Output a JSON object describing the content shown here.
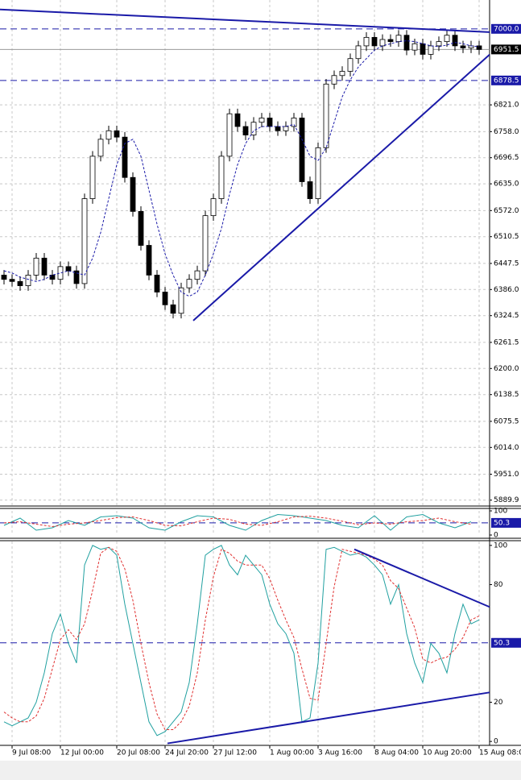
{
  "chart_data": [
    {
      "type": "candlestick",
      "open": [
        6420,
        6410,
        6405,
        6395,
        6420,
        6460,
        6420,
        6410,
        6440,
        6430,
        6400,
        6600,
        6700,
        6740,
        6760,
        6745,
        6650,
        6570,
        6490,
        6420,
        6380,
        6350,
        6330,
        6390,
        6410,
        6430,
        6560,
        6600,
        6700,
        6800,
        6770,
        6750,
        6780,
        6790,
        6770,
        6760,
        6770,
        6790,
        6640,
        6600,
        6720,
        6870,
        6890,
        6900,
        6930,
        6960,
        6980,
        6960,
        6975,
        6970,
        6985,
        6950,
        6965,
        6940,
        6960,
        6970,
        6985,
        6960,
        6955,
        6960
      ],
      "high": [
        6432,
        6422,
        6417,
        6432,
        6472,
        6472,
        6432,
        6452,
        6452,
        6442,
        6612,
        6712,
        6752,
        6772,
        6772,
        6757,
        6662,
        6582,
        6502,
        6432,
        6392,
        6362,
        6402,
        6422,
        6442,
        6572,
        6612,
        6712,
        6812,
        6812,
        6782,
        6792,
        6802,
        6802,
        6782,
        6782,
        6802,
        6802,
        6652,
        6732,
        6882,
        6902,
        6912,
        6942,
        6972,
        6992,
        6992,
        6987,
        6987,
        6997,
        6997,
        6977,
        6977,
        6972,
        6982,
        6997,
        6997,
        6972,
        6972,
        6972
      ],
      "low": [
        6398,
        6393,
        6383,
        6383,
        6408,
        6408,
        6398,
        6398,
        6418,
        6388,
        6388,
        6588,
        6688,
        6728,
        6733,
        6638,
        6558,
        6478,
        6408,
        6368,
        6338,
        6318,
        6318,
        6378,
        6398,
        6418,
        6548,
        6588,
        6688,
        6758,
        6738,
        6738,
        6768,
        6758,
        6748,
        6748,
        6758,
        6628,
        6588,
        6588,
        6708,
        6858,
        6878,
        6888,
        6918,
        6948,
        6948,
        6948,
        6958,
        6958,
        6938,
        6938,
        6928,
        6928,
        6948,
        6958,
        6948,
        6943,
        6943,
        6939.5
      ],
      "close": [
        6410,
        6405,
        6395,
        6420,
        6460,
        6420,
        6410,
        6440,
        6430,
        6400,
        6600,
        6700,
        6740,
        6760,
        6745,
        6650,
        6570,
        6490,
        6420,
        6380,
        6350,
        6330,
        6390,
        6410,
        6430,
        6560,
        6600,
        6700,
        6800,
        6770,
        6750,
        6780,
        6790,
        6770,
        6760,
        6770,
        6790,
        6640,
        6600,
        6720,
        6870,
        6890,
        6900,
        6930,
        6960,
        6980,
        6960,
        6975,
        6970,
        6985,
        6950,
        6965,
        6940,
        6960,
        6970,
        6985,
        6960,
        6955,
        6960,
        6951.5
      ],
      "color_up": "#ffffff",
      "color_down": "#000000",
      "ma": {
        "color": "#1a1aa8",
        "values": [
          6430,
          6425,
          6415,
          6410,
          6405,
          6410,
          6420,
          6425,
          6430,
          6425,
          6420,
          6460,
          6520,
          6600,
          6680,
          6730,
          6740,
          6700,
          6620,
          6540,
          6470,
          6420,
          6380,
          6370,
          6380,
          6420,
          6470,
          6530,
          6610,
          6680,
          6730,
          6760,
          6770,
          6770,
          6770,
          6770,
          6775,
          6740,
          6700,
          6690,
          6720,
          6780,
          6840,
          6880,
          6910,
          6930,
          6950,
          6960,
          6965,
          6970,
          6972,
          6970,
          6965,
          6960,
          6958,
          6962,
          6968,
          6965,
          6960,
          6958
        ]
      },
      "xlim": [
        -0.5,
        60.3
      ],
      "ylim": [
        5876,
        7068
      ],
      "yticks": [
        {
          "value": 6821,
          "label": "6821.0"
        },
        {
          "value": 6758,
          "label": "6758.0"
        },
        6696.5,
        {
          "value": 6635,
          "label": "6635.0"
        },
        {
          "value": 6572,
          "label": "6572.0"
        },
        6510.5,
        6447.5,
        {
          "value": 6386,
          "label": "6386.0"
        },
        6324.5,
        6261.5,
        {
          "value": 6200,
          "label": "6200.0"
        },
        6138.5,
        6075.5,
        {
          "value": 6014,
          "label": "6014.0"
        },
        {
          "value": 5951,
          "label": "5951.0"
        },
        5889.9
      ],
      "xticks": [
        {
          "value": 1,
          "label": "9 Jul 08:00"
        },
        {
          "value": 7,
          "label": "12 Jul 00:00"
        },
        {
          "value": 14,
          "label": "20 Jul 08:00"
        },
        {
          "value": 20,
          "label": "24 Jul 20:00"
        },
        {
          "value": 26,
          "label": "27 Jul 12:00"
        },
        {
          "value": 33,
          "label": "1 Aug 00:00"
        },
        {
          "value": 39,
          "label": "3 Aug 16:00"
        },
        {
          "value": 46,
          "label": "8 Aug 04:00"
        },
        {
          "value": 52,
          "label": "10 Aug 20:00"
        },
        {
          "value": 59,
          "label": "15 Aug 08:00"
        }
      ],
      "levels": [
        {
          "value": {
            "value": 7000,
            "label": "7000.0"
          },
          "color": "#1a1aa8"
        },
        {
          "value": 6951.5,
          "color": "#000000"
        },
        {
          "value": 6878.5,
          "color": "#1a1aa8"
        }
      ],
      "trendlines": [
        {
          "x": [
            -0.5,
            60.3
          ],
          "y": [
            7045.6,
            6992.4
          ],
          "color": "#1a1aa8"
        },
        {
          "x": [
            23.5,
            60.3
          ],
          "y": [
            6312.9,
            6939.3
          ],
          "color": "#1a1aa8"
        }
      ],
      "grid": true
    },
    {
      "type": "line",
      "series": [
        {
          "color": "#20a0a0",
          "dash": false,
          "values": [
            40,
            70,
            20,
            30,
            60,
            40,
            75,
            80,
            70,
            30,
            20,
            55,
            80,
            75,
            40,
            20,
            60,
            85,
            80,
            70,
            60,
            40,
            30,
            80,
            20,
            75,
            85,
            50,
            30,
            55
          ]
        },
        {
          "color": "#e03030",
          "dash": true,
          "values": [
            50,
            55,
            45,
            35,
            45,
            50,
            60,
            72,
            75,
            60,
            40,
            38,
            55,
            70,
            65,
            45,
            40,
            55,
            75,
            78,
            70,
            57,
            43,
            50,
            45,
            55,
            60,
            70,
            55,
            45
          ]
        }
      ],
      "xlim": [
        -0.25,
        30.15
      ],
      "ylim": [
        0,
        100
      ],
      "yticks": [
        100,
        0
      ],
      "levels": [
        {
          "value": 50.3,
          "color": "#1a1aa8"
        }
      ],
      "trendlines": []
    },
    {
      "type": "line",
      "series": [
        {
          "color": "#20a0a0",
          "dash": false,
          "values": [
            10,
            8,
            10,
            12,
            20,
            35,
            55,
            65,
            50,
            40,
            90,
            100,
            98,
            99,
            95,
            70,
            50,
            30,
            10,
            3,
            5,
            10,
            15,
            30,
            60,
            95,
            98,
            100,
            90,
            85,
            95,
            90,
            85,
            70,
            60,
            55,
            45,
            10,
            12,
            40,
            98,
            99,
            97,
            95,
            96,
            94,
            90,
            85,
            70,
            80,
            55,
            40,
            30,
            50,
            45,
            35,
            55,
            70,
            60,
            62
          ]
        },
        {
          "color": "#e03030",
          "dash": true,
          "values": [
            15,
            12,
            10,
            10,
            13,
            22,
            37,
            52,
            57,
            52,
            60,
            77,
            96,
            99,
            97,
            88,
            72,
            50,
            30,
            14,
            6,
            6,
            10,
            18,
            35,
            62,
            84,
            98,
            96,
            92,
            90,
            90,
            90,
            83,
            72,
            62,
            53,
            37,
            22,
            21,
            50,
            79,
            98,
            97,
            96,
            95,
            93,
            90,
            82,
            78,
            68,
            58,
            42,
            40,
            42,
            43,
            47,
            53,
            62,
            64
          ]
        }
      ],
      "xlim": [
        -0.5,
        60.3
      ],
      "ylim": [
        -2,
        102
      ],
      "yticks": [
        100,
        80,
        20,
        0
      ],
      "levels": [
        {
          "value": 50.3,
          "color": "#1a1aa8"
        }
      ],
      "trendlines": [
        {
          "x": [
            43.5,
            60.3
          ],
          "y": [
            98,
            68.6
          ],
          "color": "#1a1aa8"
        },
        {
          "x": [
            20.3,
            60.3
          ],
          "y": [
            -1,
            25
          ],
          "color": "#1a1aa8"
        }
      ]
    }
  ]
}
